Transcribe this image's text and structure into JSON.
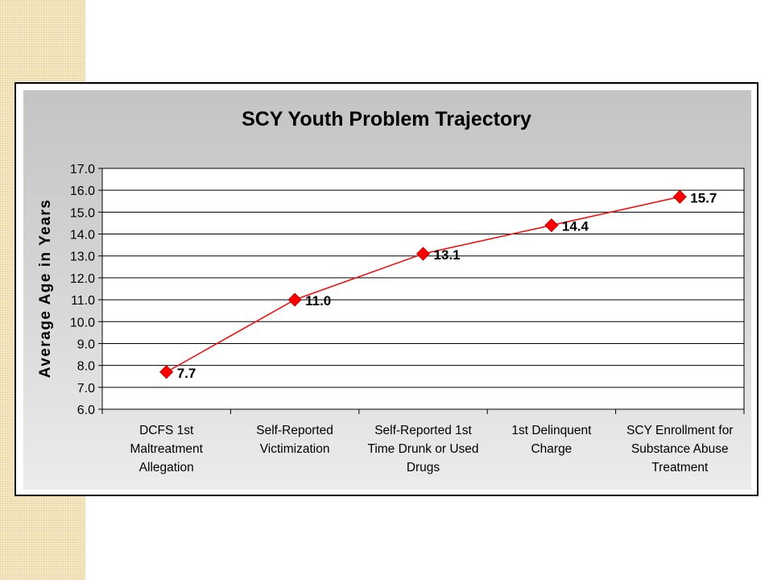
{
  "colors": {
    "series": "#ee1111",
    "marker": "#ff0000",
    "plot_bg": "#ffffff",
    "grid": "#000000"
  },
  "chart_data": {
    "type": "line",
    "title": "SCY Youth Problem Trajectory",
    "xlabel": "",
    "ylabel": "Average Age in Years",
    "ylim": [
      6.0,
      17.0
    ],
    "y_ticks": [
      "6.0",
      "7.0",
      "8.0",
      "9.0",
      "10.0",
      "11.0",
      "12.0",
      "13.0",
      "14.0",
      "15.0",
      "16.0",
      "17.0"
    ],
    "grid": true,
    "legend": "none",
    "categories": [
      [
        "DCFS 1st",
        "Maltreatment",
        "Allegation"
      ],
      [
        "Self-Reported",
        "Victimization"
      ],
      [
        "Self-Reported 1st",
        "Time Drunk or Used",
        "Drugs"
      ],
      [
        "1st Delinquent",
        "Charge"
      ],
      [
        "SCY Enrollment for",
        "Substance Abuse",
        "Treatment"
      ]
    ],
    "series": [
      {
        "values": [
          7.7,
          11.0,
          13.1,
          14.4,
          15.7
        ],
        "labels": [
          "7.7",
          "11.0",
          "13.1",
          "14.4",
          "15.7"
        ]
      }
    ]
  }
}
